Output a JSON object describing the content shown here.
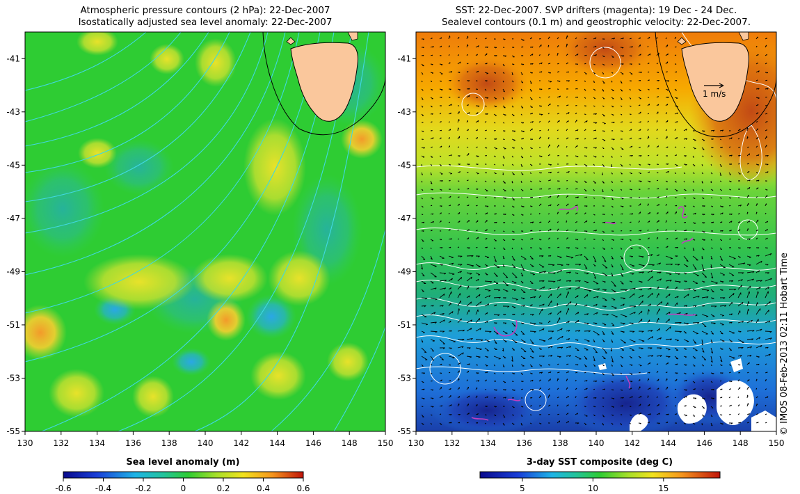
{
  "left_panel": {
    "title_line1": "Atmospheric pressure contours (2 hPa): 22-Dec-2007",
    "title_line2": "Isostatically adjusted sea level anomaly: 22-Dec-2007",
    "lat_ticks": [
      "-41",
      "-43",
      "-45",
      "-47",
      "-49",
      "-51",
      "-53",
      "-55"
    ],
    "lon_ticks": [
      "130",
      "132",
      "134",
      "136",
      "138",
      "140",
      "142",
      "144",
      "146",
      "148",
      "150"
    ],
    "colorbar": {
      "label": "Sea level anomaly (m)",
      "ticks": [
        "-0.6",
        "-0.4",
        "-0.2",
        "0",
        "0.2",
        "0.4",
        "0.6"
      ],
      "range": [
        -0.6,
        0.6
      ]
    }
  },
  "right_panel": {
    "title_line1": "SST: 22-Dec-2007. SVP drifters (magenta): 19 Dec - 24 Dec.",
    "title_line2": "Sealevel contours (0.1 m) and geostrophic velocity: 22-Dec-2007.",
    "lat_ticks": [
      "-41",
      "-43",
      "-45",
      "-47",
      "-49",
      "-51",
      "-53",
      "-55"
    ],
    "lon_ticks": [
      "130",
      "132",
      "134",
      "136",
      "138",
      "140",
      "142",
      "144",
      "146",
      "148",
      "150"
    ],
    "velocity_scale_label": "1 m/s",
    "colorbar": {
      "label": "3-day SST composite (deg C)",
      "ticks": [
        "5",
        "10",
        "15"
      ],
      "range": [
        2,
        19
      ]
    }
  },
  "credit": "© IMOS 08-Feb-2013 02:11 Hobart Time",
  "map_extent": {
    "lon": [
      130,
      150
    ],
    "lat": [
      -55,
      -40
    ]
  },
  "colors": {
    "land": "#fac79c",
    "pressure_contour": "#40d8e0",
    "drifter": "#c040c0",
    "sla_base": "#2ecc33",
    "sst_warm": "#ff8c00"
  }
}
